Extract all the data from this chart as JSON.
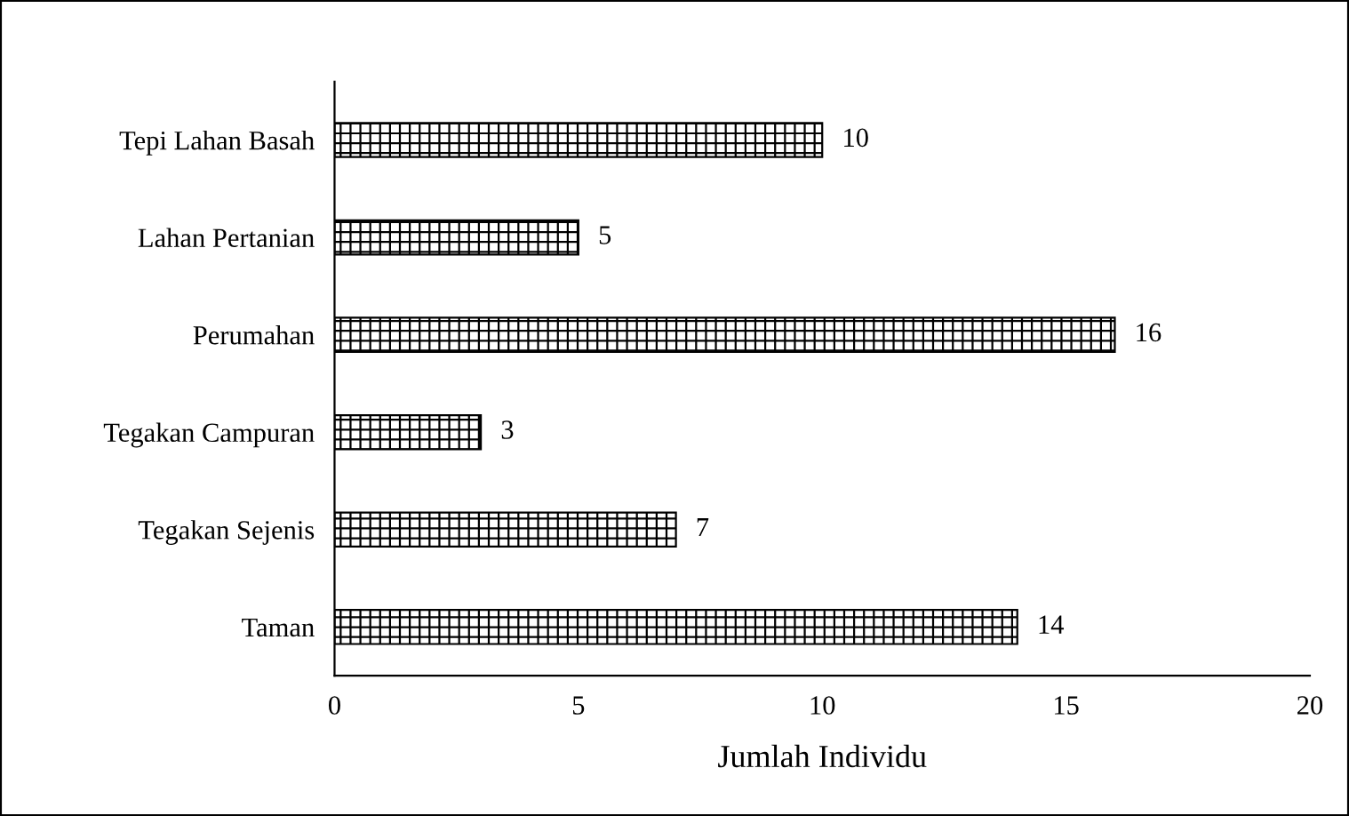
{
  "chart_data": {
    "type": "bar",
    "orientation": "horizontal",
    "categories": [
      "Tepi Lahan Basah",
      "Lahan Pertanian",
      "Perumahan",
      "Tegakan Campuran",
      "Tegakan Sejenis",
      "Taman"
    ],
    "values": [
      10,
      5,
      16,
      3,
      7,
      14
    ],
    "color": "#000000",
    "xlabel": "Jumlah Individu",
    "xlim": [
      0,
      20
    ],
    "xticks": [
      0,
      5,
      10,
      15,
      20
    ],
    "data_labels": true,
    "grid": false,
    "legend": false
  }
}
